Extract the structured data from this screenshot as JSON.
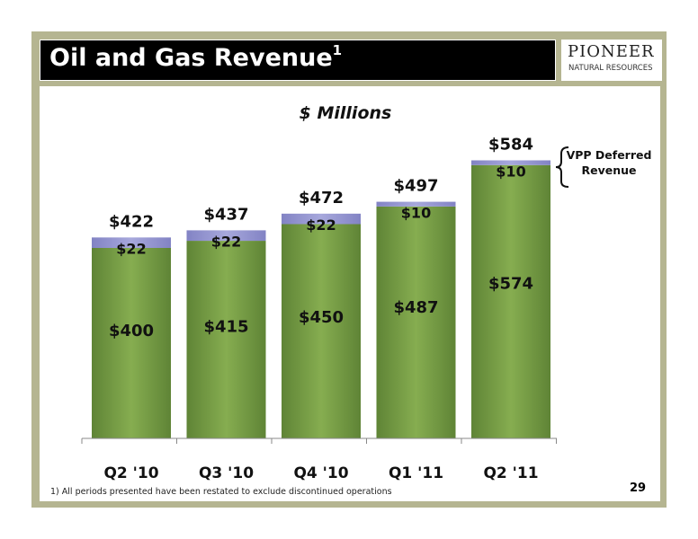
{
  "header": {
    "title": "Oil and Gas Revenue",
    "title_superscript": "1"
  },
  "logo": {
    "line1": "PIONEER",
    "line2": "NATURAL RESOURCES"
  },
  "chart_data": {
    "type": "bar",
    "stacked": true,
    "subtitle": "$ Millions",
    "categories": [
      "Q2 '10",
      "Q3 '10",
      "Q4 '10",
      "Q1 '11",
      "Q2 '11"
    ],
    "series": [
      {
        "values": [
          400,
          415,
          450,
          487,
          574
        ],
        "labels": [
          "$400",
          "$415",
          "$450",
          "$487",
          "$574"
        ],
        "color": "#7ea448"
      },
      {
        "values": [
          22,
          22,
          22,
          10,
          10
        ],
        "labels": [
          "$22",
          "$22",
          "$22",
          "$10",
          "$10"
        ],
        "color": "#9d9ed4"
      }
    ],
    "totals": [
      422,
      437,
      472,
      497,
      584
    ],
    "total_labels": [
      "$422",
      "$437",
      "$472",
      "$497",
      "$584"
    ],
    "annotation": {
      "text_line1": "VPP Deferred",
      "text_line2": "Revenue"
    },
    "grid": false,
    "ylim": [
      0,
      600
    ]
  },
  "footnote": "1) All periods presented have been restated to exclude discontinued operations",
  "page_number": "29"
}
